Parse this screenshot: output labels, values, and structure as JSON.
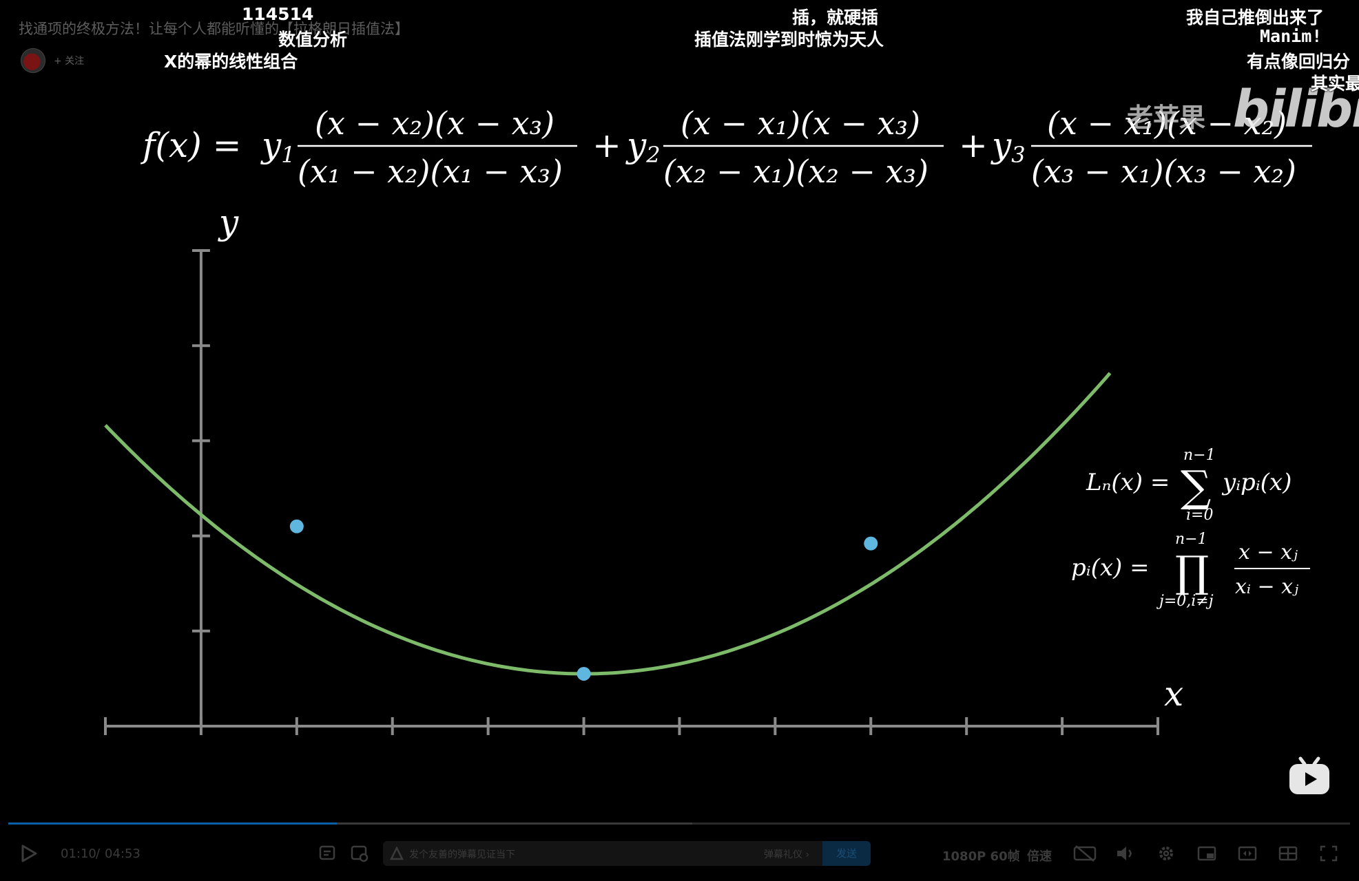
{
  "video": {
    "title": "找通项的终极方法！让每个人都能听懂的【拉格朗日插值法】",
    "follow_label": "+ 关注"
  },
  "danmaku": [
    "114514",
    "数值分析",
    "X的幂的线性组合",
    "插，就硬插",
    "插值法刚学到时惊为天人",
    "我自己推倒出来了",
    "Manim!",
    "有点像回归分",
    "其实最"
  ],
  "watermark": {
    "author": "老苹果",
    "site": "bilibili"
  },
  "math": {
    "main_lhs": "f(x) =",
    "terms": [
      {
        "coef": "y",
        "sub": "1",
        "num": "(x − x₂)(x − x₃)",
        "den": "(x₁ − x₂)(x₁ − x₃)"
      },
      {
        "coef": "y",
        "sub": "2",
        "num": "(x − x₁)(x − x₃)",
        "den": "(x₂ − x₁)(x₂ − x₃)"
      },
      {
        "coef": "y",
        "sub": "3",
        "num": "(x − x₁)(x − x₂)",
        "den": "(x₃ − x₁)(x₃ − x₂)"
      }
    ],
    "plus": "+",
    "ln_lhs": "Lₙ(x) =",
    "ln_top": "n−1",
    "ln_bottom": "i=0",
    "ln_body": "yᵢpᵢ(x)",
    "pi_lhs": "pᵢ(x) =",
    "pi_top": "n−1",
    "pi_bottom": "j=0,i≠j",
    "pi_num": "x − xⱼ",
    "pi_den": "xᵢ − xⱼ",
    "axis_x": "x",
    "axis_y": "y"
  },
  "chart_data": {
    "type": "line",
    "title": "",
    "xlabel": "x",
    "ylabel": "y",
    "xlim": [
      -1,
      10
    ],
    "ylim": [
      0,
      5
    ],
    "x_ticks": [
      -1,
      0,
      1,
      2,
      3,
      4,
      5,
      6,
      7,
      8,
      9,
      10
    ],
    "y_ticks": [
      0,
      1,
      2,
      3,
      4
    ],
    "curve": {
      "a": 0.1045,
      "h": 4,
      "k": 0.55,
      "x_range": [
        -1,
        9.5
      ],
      "color": "#7dbb6a"
    },
    "points": [
      {
        "x": 1,
        "y": 2.1
      },
      {
        "x": 4,
        "y": 0.55
      },
      {
        "x": 7,
        "y": 1.92
      }
    ],
    "point_color": "#5fb7e0",
    "axis_color": "#8a8a8a",
    "grid": false
  },
  "player": {
    "time_current": "01:10",
    "time_sep": "/",
    "time_total": "04:53",
    "progress": 0.245,
    "buffered": 0.51,
    "danmaku_placeholder": "发个友善的弹幕见证当下",
    "etiquette_label": "弹幕礼仪 ›",
    "send_label": "发送",
    "quality_label": "1080P 60帧",
    "speed_label": "倍速",
    "icons": [
      "play-icon",
      "danmaku-toggle-icon",
      "danmaku-settings-icon",
      "subtitle-off-icon",
      "volume-icon",
      "settings-icon",
      "pip-icon",
      "widescreen-icon",
      "fullscreen-web-icon",
      "fullscreen-icon"
    ]
  }
}
